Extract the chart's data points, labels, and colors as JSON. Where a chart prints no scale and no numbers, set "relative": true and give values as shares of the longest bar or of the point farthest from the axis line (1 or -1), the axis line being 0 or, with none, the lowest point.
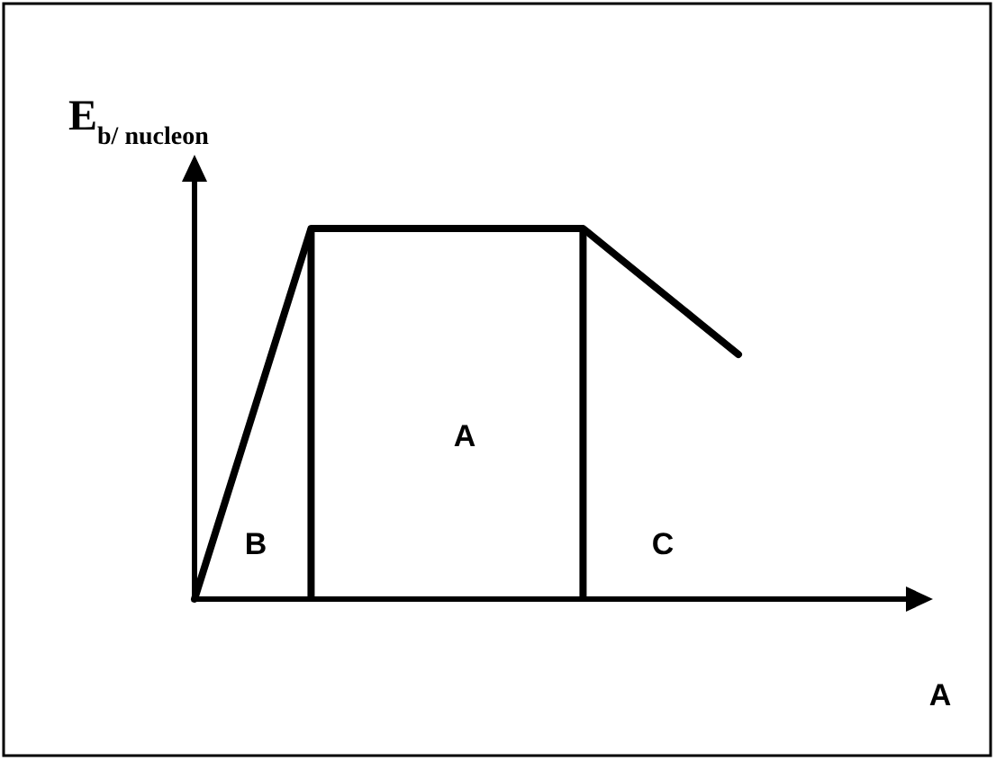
{
  "chart_data": {
    "type": "line",
    "relative": true,
    "ylabel": "E$_{b/ nucleon}$",
    "categories": [
      null,
      null,
      null,
      null,
      null,
      null,
      null,
      null,
      null,
      null,
      null,
      null,
      null,
      null,
      null
    ],
    "series": [
      {
        "color": "#000000",
        "values": [
          0,
          0.333,
          0.667,
          1,
          1,
          1,
          1,
          1,
          1,
          1,
          1,
          0.915,
          0.83,
          0.745,
          0.66
        ]
      }
    ],
    "annotations": [
      "B",
      "A",
      "C",
      "A"
    ],
    "marker": "none",
    "line_style": "solid"
  }
}
